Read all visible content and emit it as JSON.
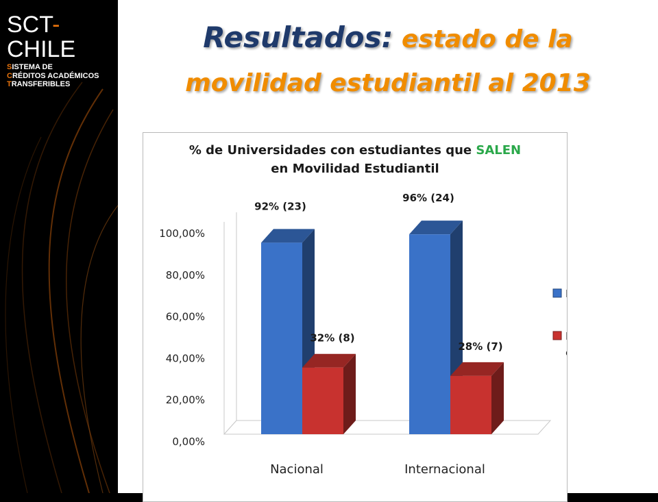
{
  "brand": {
    "name_part1": "SCT",
    "name_sep": "-",
    "name_part2": "CHILE",
    "sub_lines": [
      {
        "initial": "S",
        "rest": "ISTEMA DE"
      },
      {
        "initial": "C",
        "rest": "RÉDITOS ACADÉMICOS"
      },
      {
        "initial": "T",
        "rest": "RANSFERIBLES"
      }
    ]
  },
  "slide": {
    "title_lead": "Resultados:",
    "title_rest_line1": " estado de la",
    "title_line2": "movilidad estudiantil al 2013"
  },
  "chart_data": {
    "type": "bar",
    "title_part1": "% de Universidades con estudiantes que ",
    "title_highlight": "SALEN",
    "title_line2": "en Movilidad Estudiantil",
    "categories": [
      "Nacional",
      "Internacional"
    ],
    "series": [
      {
        "name": "Movilidad",
        "values": [
          92,
          96
        ],
        "labels": [
          "92% (23)",
          "96% (24)"
        ],
        "color": "#3a72c8"
      },
      {
        "name": "Movilidad en SCT",
        "values": [
          32,
          28
        ],
        "labels": [
          "32% (8)",
          "28% (7)"
        ],
        "color": "#c8322f"
      }
    ],
    "yticks": [
      "0,00%",
      "20,00%",
      "40,00%",
      "60,00%",
      "80,00%",
      "100,00%"
    ],
    "ylim": [
      0,
      100
    ],
    "legend_position": "right",
    "grid": false,
    "style": "3d-column"
  },
  "colors": {
    "highlight": "#2aa84a",
    "title_lead": "#1f3a6b",
    "title_rest": "#f08c00",
    "brand_accent": "#e8730c"
  }
}
